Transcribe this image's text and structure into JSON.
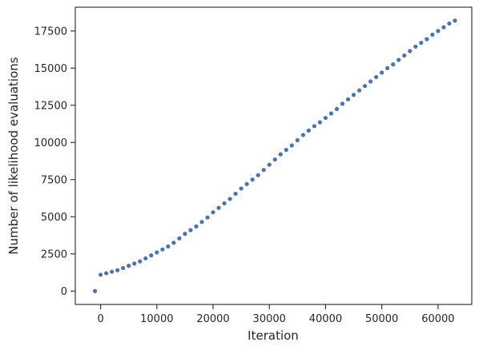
{
  "chart_data": {
    "type": "scatter",
    "xlabel": "Iteration",
    "ylabel": "Number of likelihood evaluations",
    "xlim": [
      -4500,
      66000
    ],
    "ylim": [
      -900,
      19100
    ],
    "xticks": [
      0,
      10000,
      20000,
      30000,
      40000,
      50000,
      60000
    ],
    "yticks": [
      0,
      2500,
      5000,
      7500,
      10000,
      12500,
      15000,
      17500
    ],
    "grid": false,
    "marker_color": "#4c72b0",
    "series": [
      {
        "x": [
          -1000,
          0,
          1000,
          2000,
          3000,
          4000,
          5000,
          6000,
          7000,
          8000,
          9000,
          10000,
          11000,
          12000,
          13000,
          14000,
          15000,
          16000,
          17000,
          18000,
          19000,
          20000,
          21000,
          22000,
          23000,
          24000,
          25000,
          26000,
          27000,
          28000,
          29000,
          30000,
          31000,
          32000,
          33000,
          34000,
          35000,
          36000,
          37000,
          38000,
          39000,
          40000,
          41000,
          42000,
          43000,
          44000,
          45000,
          46000,
          47000,
          48000,
          49000,
          50000,
          51000,
          52000,
          53000,
          54000,
          55000,
          56000,
          57000,
          58000,
          59000,
          60000,
          61000,
          62000,
          63000
        ],
        "y": [
          0,
          1100,
          1200,
          1300,
          1400,
          1550,
          1700,
          1850,
          2000,
          2200,
          2400,
          2600,
          2800,
          3000,
          3250,
          3550,
          3850,
          4100,
          4350,
          4650,
          4950,
          5300,
          5600,
          5900,
          6200,
          6550,
          6900,
          7200,
          7500,
          7800,
          8150,
          8500,
          8850,
          9200,
          9500,
          9800,
          10150,
          10500,
          10800,
          11100,
          11350,
          11650,
          11950,
          12250,
          12600,
          12900,
          13200,
          13500,
          13800,
          14100,
          14400,
          14700,
          15000,
          15250,
          15550,
          15850,
          16150,
          16450,
          16700,
          16950,
          17250,
          17500,
          17750,
          18000,
          18200
        ]
      }
    ]
  }
}
